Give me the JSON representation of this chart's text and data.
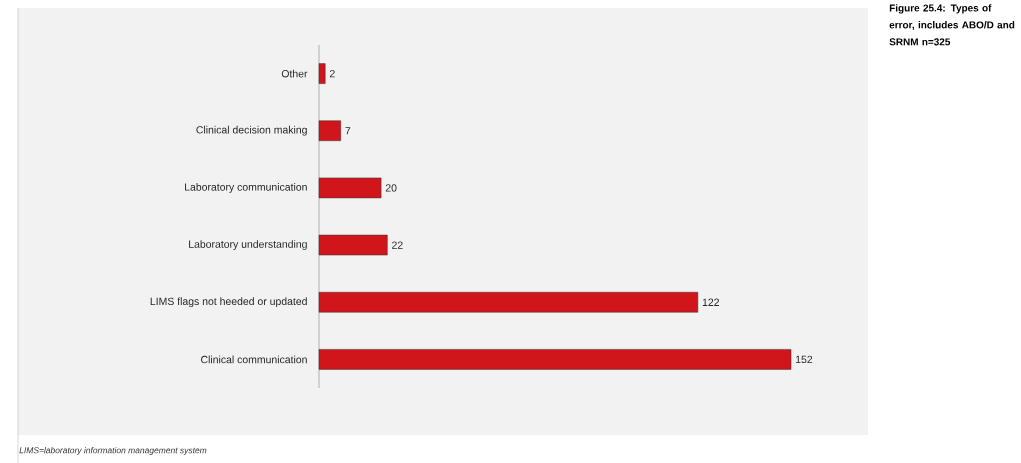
{
  "chart_data": {
    "type": "bar",
    "orientation": "horizontal",
    "title": "**Figure 25.4: Types of error, includes ABO/D and SRNM n=325**",
    "categories": [
      "Other",
      "Clinical decision making",
      "Laboratory communication",
      "Laboratory understanding",
      "LIMS flags not heeded or updated",
      "Clinical communication"
    ],
    "values": [
      2,
      7,
      20,
      22,
      122,
      152
    ],
    "color": "#d0161b",
    "data_labels": true,
    "tick_labels": "y",
    "annotations": [
      "*LIMS=laboratory information management system*"
    ]
  }
}
